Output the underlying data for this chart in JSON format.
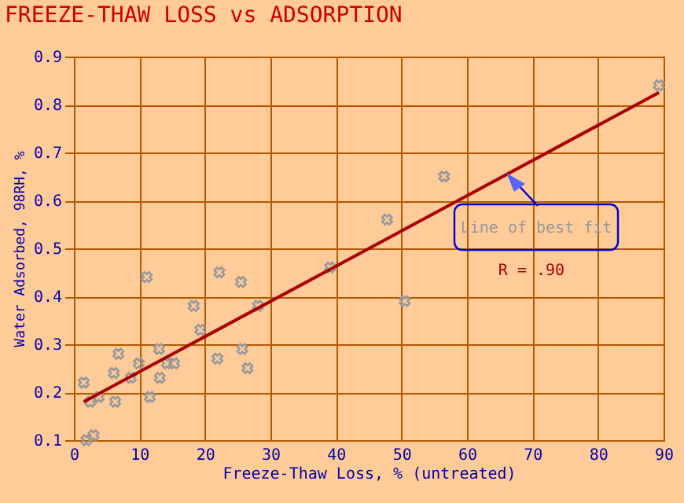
{
  "chart_data": {
    "type": "scatter",
    "title": "FREEZE-THAW LOSS vs ADSORPTION",
    "xlabel": "Freeze-Thaw Loss, % (untreated)",
    "ylabel": "Water Adsorbed, 98RH, %",
    "xlim": [
      0,
      90
    ],
    "xticks": [
      0,
      10,
      20,
      30,
      40,
      50,
      60,
      70,
      80,
      90
    ],
    "ylim": [
      0.1,
      0.9
    ],
    "yticks": [
      0.1,
      0.2,
      0.3,
      0.4,
      0.5,
      0.6,
      0.7,
      0.8,
      0.9
    ],
    "grid": true,
    "series": [
      {
        "marker": "cross",
        "color": "#999999",
        "x": [
          1.9,
          3.0,
          1.5,
          2.5,
          3.8,
          6.3,
          6.1,
          6.8,
          8.7,
          9.9,
          11.1,
          11.6,
          13.0,
          13.1,
          14.2,
          15.3,
          18.3,
          19.3,
          22.2,
          21.9,
          25.5,
          25.7,
          26.5,
          28.1,
          39.1,
          47.8,
          50.5,
          56.5,
          89.3
        ],
        "values": [
          0.1,
          0.11,
          0.22,
          0.18,
          0.19,
          0.18,
          0.24,
          0.28,
          0.23,
          0.26,
          0.44,
          0.19,
          0.29,
          0.23,
          0.26,
          0.26,
          0.38,
          0.33,
          0.45,
          0.27,
          0.43,
          0.29,
          0.25,
          0.38,
          0.46,
          0.56,
          0.39,
          0.65,
          0.84
        ]
      },
      {
        "type": "line",
        "color": "#aa0000",
        "x": [
          1.5,
          89.3
        ],
        "values": [
          0.18,
          0.825
        ]
      }
    ],
    "annotations": [
      {
        "text": "Line of best fit",
        "x": 66,
        "y": 0.66
      },
      "R = .90"
    ]
  }
}
